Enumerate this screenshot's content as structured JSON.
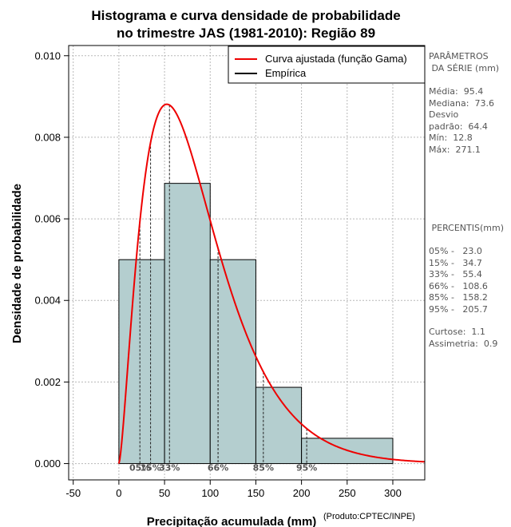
{
  "chart_data": {
    "type": "bar",
    "title_line1": "Histograma e curva densidade de probabilidade",
    "title_line2": "no trimestre JAS (1981-2010): Região 89",
    "xlabel": "Precipitação acumulada (mm)",
    "ylabel": "Densidade de probabilidade",
    "credit": "(Produto:CPTEC/INPE)",
    "xlim": [
      -55,
      335
    ],
    "ylim": [
      -0.0004,
      0.01025
    ],
    "x_ticks": [
      -50,
      0,
      50,
      100,
      150,
      200,
      250,
      300
    ],
    "y_ticks": [
      0.0,
      0.002,
      0.004,
      0.006,
      0.008,
      0.01
    ],
    "y_tick_labels": [
      "0.000",
      "0.002",
      "0.004",
      "0.006",
      "0.008",
      "0.010"
    ],
    "grid": true,
    "histogram": {
      "bin_edges": [
        0,
        50,
        100,
        150,
        200,
        300
      ],
      "densities": [
        0.005,
        0.00687,
        0.005,
        0.00187,
        0.00062
      ],
      "fill": "#b4cecf"
    },
    "gamma_fit": {
      "shape": 2.5,
      "scale": 35.0,
      "color": "#ee0000"
    },
    "percentile_markers": [
      {
        "label": "05%",
        "x": 23.0
      },
      {
        "label": "15%",
        "x": 34.7
      },
      {
        "label": "33%",
        "x": 55.4
      },
      {
        "label": "66%",
        "x": 108.6
      },
      {
        "label": "85%",
        "x": 158.2
      },
      {
        "label": "95%",
        "x": 205.7
      }
    ],
    "legend": {
      "position": "top-right",
      "entries": [
        {
          "label": "Curva ajustada (função Gama)",
          "color": "#ee0000"
        },
        {
          "label": "Empírica",
          "color": "#000000"
        }
      ]
    }
  },
  "side_panel": {
    "params_title": "PARÂMETROS\n DA SÉRIE (mm)",
    "params_body": "Média:  95.4\nMediana:  73.6\nDesvio\npadrão:  64.4\nMín:  12.8\nMáx:  271.1",
    "percentis_title": " PERCENTIS(mm)",
    "percentis_body": "05% -   23.0\n15% -   34.7\n33% -   55.4\n66% -   108.6\n85% -   158.2\n95% -   205.7",
    "stats_body": "Curtose:  1.1\nAssimetria:  0.9"
  }
}
